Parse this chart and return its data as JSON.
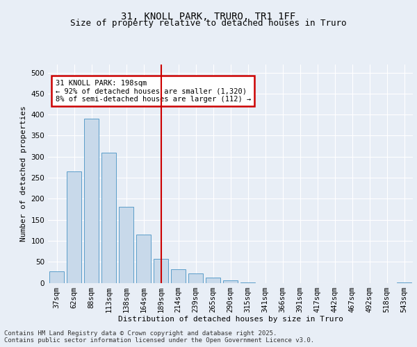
{
  "title": "31, KNOLL PARK, TRURO, TR1 1FF",
  "subtitle": "Size of property relative to detached houses in Truro",
  "xlabel": "Distribution of detached houses by size in Truro",
  "ylabel": "Number of detached properties",
  "categories": [
    "37sqm",
    "62sqm",
    "88sqm",
    "113sqm",
    "138sqm",
    "164sqm",
    "189sqm",
    "214sqm",
    "239sqm",
    "265sqm",
    "290sqm",
    "315sqm",
    "341sqm",
    "366sqm",
    "391sqm",
    "417sqm",
    "442sqm",
    "467sqm",
    "492sqm",
    "518sqm",
    "543sqm"
  ],
  "values": [
    27,
    265,
    390,
    310,
    180,
    115,
    57,
    32,
    22,
    13,
    5,
    1,
    0,
    0,
    0,
    0,
    0,
    0,
    0,
    0,
    1
  ],
  "bar_color": "#c8d9ea",
  "bar_edge_color": "#5b9dc9",
  "highlight_bar_index": 6,
  "vline_color": "#cc0000",
  "ylim": [
    0,
    520
  ],
  "yticks": [
    0,
    50,
    100,
    150,
    200,
    250,
    300,
    350,
    400,
    450,
    500
  ],
  "background_color": "#e8eef6",
  "grid_color": "#ffffff",
  "annotation_text": "31 KNOLL PARK: 198sqm\n← 92% of detached houses are smaller (1,320)\n8% of semi-detached houses are larger (112) →",
  "annotation_box_facecolor": "#ffffff",
  "annotation_box_edgecolor": "#cc0000",
  "footer_text": "Contains HM Land Registry data © Crown copyright and database right 2025.\nContains public sector information licensed under the Open Government Licence v3.0.",
  "title_fontsize": 10,
  "subtitle_fontsize": 9,
  "axis_label_fontsize": 8,
  "tick_fontsize": 7.5,
  "annotation_fontsize": 7.5,
  "footer_fontsize": 6.5
}
